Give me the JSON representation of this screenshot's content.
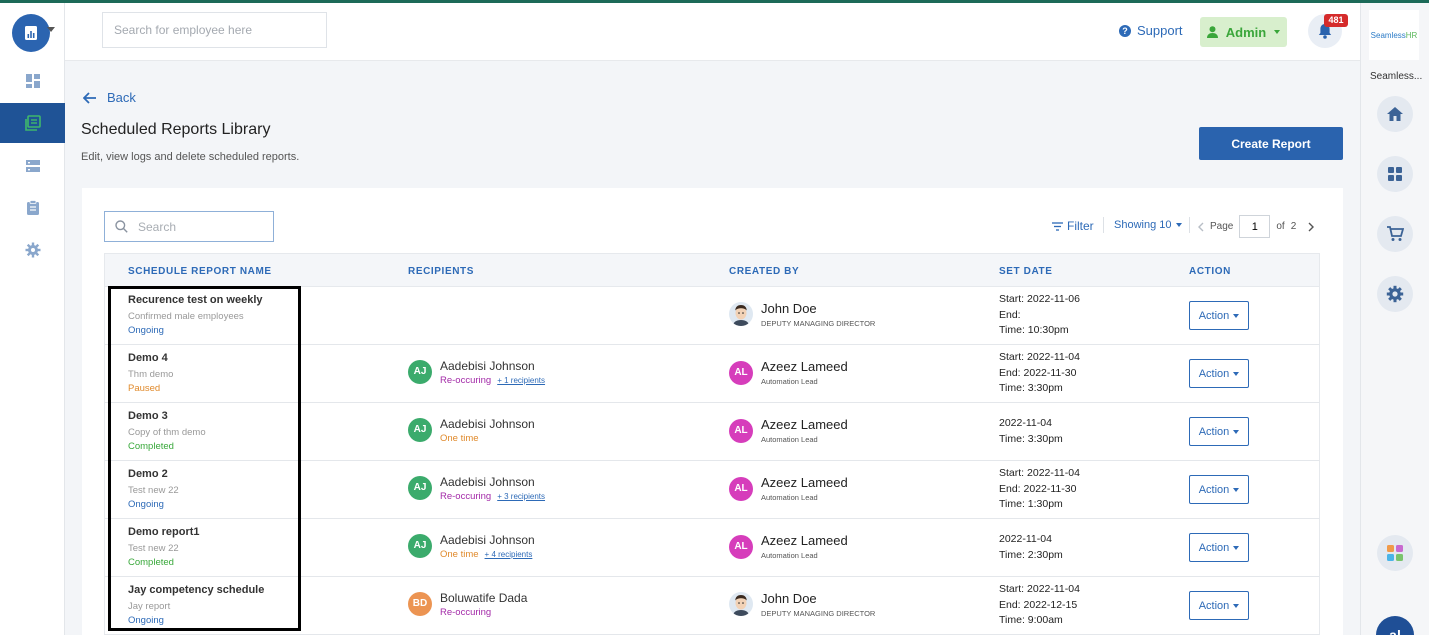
{
  "header": {
    "search_placeholder": "Search for employee here",
    "support_label": "Support",
    "admin_label": "Admin",
    "notification_count": "481"
  },
  "right_rail": {
    "brand_text_a": "Seamless",
    "brand_text_b": "HR",
    "brand_name": "Seamless..."
  },
  "page": {
    "back_label": "Back",
    "title": "Scheduled Reports Library",
    "subtitle": "Edit, view logs and delete scheduled reports.",
    "create_button": "Create Report"
  },
  "toolbar": {
    "search_placeholder": "Search",
    "filter_label": "Filter",
    "showing_label": "Showing 10",
    "page_label": "Page",
    "page_value": "1",
    "of_label": "of",
    "total_pages": "2"
  },
  "table": {
    "headers": [
      "SCHEDULE REPORT NAME",
      "RECIPIENTS",
      "CREATED BY",
      "SET DATE",
      "ACTION"
    ],
    "action_label": "Action",
    "rows": [
      {
        "name": "Recurence test on weekly",
        "desc": "Confirmed male employees",
        "status": "Ongoing",
        "recipient": null,
        "creator": {
          "name": "John Doe",
          "role": "DEPUTY MANAGING DIRECTOR",
          "avatar": "face"
        },
        "dates": [
          "Start: 2022-11-06",
          "End:",
          "Time: 10:30pm"
        ]
      },
      {
        "name": "Demo 4",
        "desc": "Thm demo",
        "status": "Paused",
        "recipient": {
          "initials": "AJ",
          "name": "Aadebisi Johnson",
          "type": "Re-occuring",
          "more": "+ 1 recipients",
          "color": "green"
        },
        "creator": {
          "name": "Azeez Lameed",
          "role": "Automation Lead",
          "initials": "AL"
        },
        "dates": [
          "Start: 2022-11-04",
          "End: 2022-11-30",
          "Time: 3:30pm"
        ]
      },
      {
        "name": "Demo 3",
        "desc": "Copy of thm demo",
        "status": "Completed",
        "recipient": {
          "initials": "AJ",
          "name": "Aadebisi Johnson",
          "type": "One time",
          "more": "",
          "color": "green"
        },
        "creator": {
          "name": "Azeez Lameed",
          "role": "Automation Lead",
          "initials": "AL"
        },
        "dates": [
          "2022-11-04",
          "Time: 3:30pm"
        ]
      },
      {
        "name": "Demo 2",
        "desc": "Test new 22",
        "status": "Ongoing",
        "recipient": {
          "initials": "AJ",
          "name": "Aadebisi Johnson",
          "type": "Re-occuring",
          "more": "+ 3 recipients",
          "color": "green"
        },
        "creator": {
          "name": "Azeez Lameed",
          "role": "Automation Lead",
          "initials": "AL"
        },
        "dates": [
          "Start: 2022-11-04",
          "End: 2022-11-30",
          "Time: 1:30pm"
        ]
      },
      {
        "name": "Demo report1",
        "desc": "Test new 22",
        "status": "Completed",
        "recipient": {
          "initials": "AJ",
          "name": "Aadebisi Johnson",
          "type": "One time",
          "more": "+ 4 recipients",
          "color": "green"
        },
        "creator": {
          "name": "Azeez Lameed",
          "role": "Automation Lead",
          "initials": "AL"
        },
        "dates": [
          "2022-11-04",
          "Time: 2:30pm"
        ]
      },
      {
        "name": "Jay competency schedule",
        "desc": "Jay report",
        "status": "Ongoing",
        "recipient": {
          "initials": "BD",
          "name": "Boluwatife Dada",
          "type": "Re-occuring",
          "more": "",
          "color": "orange"
        },
        "creator": {
          "name": "John Doe",
          "role": "DEPUTY MANAGING DIRECTOR",
          "avatar": "face"
        },
        "dates": [
          "Start: 2022-11-04",
          "End: 2022-12-15",
          "Time: 9:00am"
        ]
      }
    ]
  },
  "user_avatar": "al"
}
